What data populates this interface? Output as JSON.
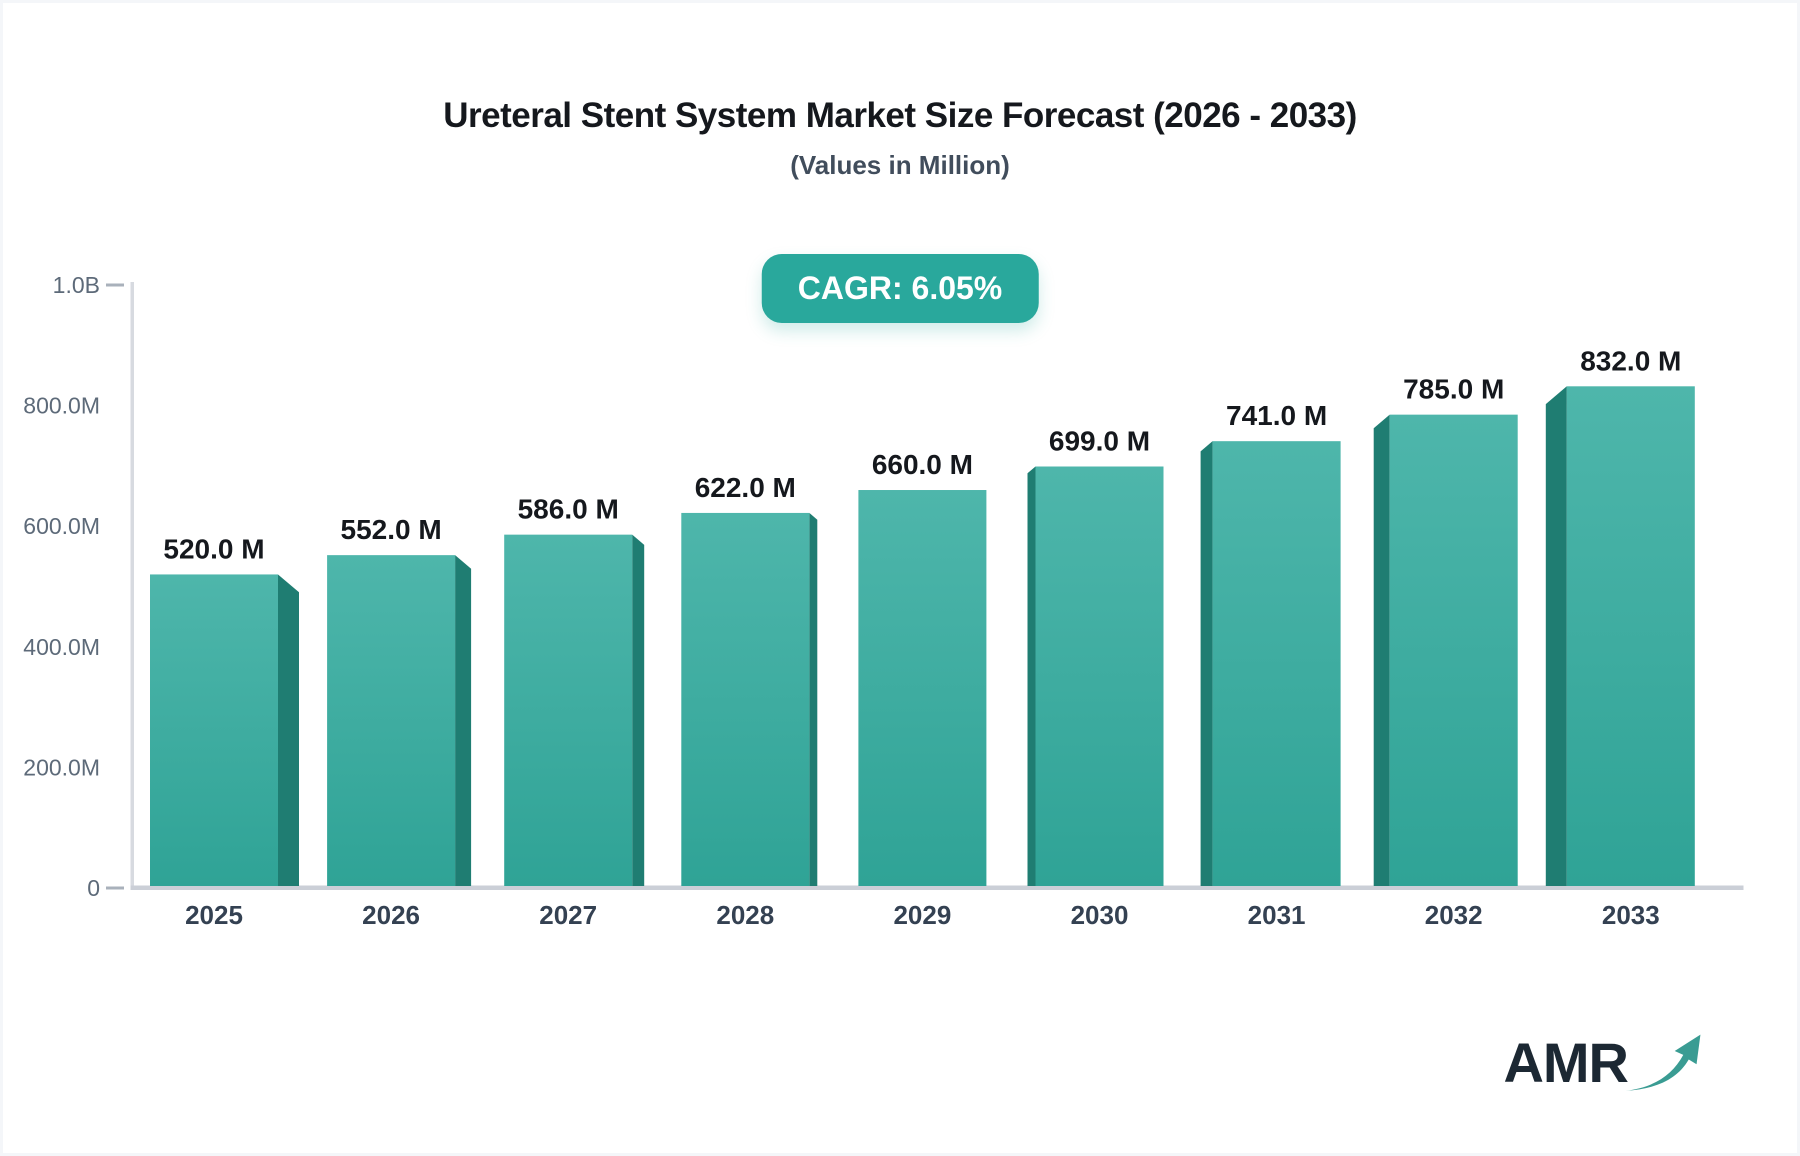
{
  "chart_data": {
    "type": "bar",
    "title": "Ureteral Stent System Market Size Forecast (2026 - 2033)",
    "subtitle": "(Values in Million)",
    "cagr_badge": "CAGR: 6.05%",
    "categories": [
      "2025",
      "2026",
      "2027",
      "2028",
      "2029",
      "2030",
      "2031",
      "2032",
      "2033"
    ],
    "values": [
      520,
      552,
      586,
      622,
      660,
      699,
      741,
      785,
      832
    ],
    "bar_labels": [
      "520.0 M",
      "552.0 M",
      "586.0 M",
      "622.0 M",
      "660.0 M",
      "699.0 M",
      "741.0 M",
      "785.0 M",
      "832.0 M"
    ],
    "xlabel": "",
    "ylabel": "",
    "ylim": [
      0,
      1000
    ],
    "grid": false,
    "legend": "none",
    "yticks": [
      {
        "value": 0,
        "label": "0",
        "dash": true
      },
      {
        "value": 200,
        "label": "200.0M",
        "dash": false
      },
      {
        "value": 400,
        "label": "400.0M",
        "dash": false
      },
      {
        "value": 600,
        "label": "600.0M",
        "dash": false
      },
      {
        "value": 800,
        "label": "800.0M",
        "dash": false
      },
      {
        "value": 1000,
        "label": "1.0B",
        "dash": true
      }
    ],
    "colors": {
      "bar_top": "#4eb6ab",
      "bar_bottom": "#2fa396",
      "bar_side": "#1f7d72",
      "axis_line": "#d7dae0",
      "baseline": "#cbcfd7",
      "tick_dash": "#a9b1bb",
      "accent": "#29a89c"
    }
  },
  "branding": {
    "logo_text": "AMR"
  }
}
